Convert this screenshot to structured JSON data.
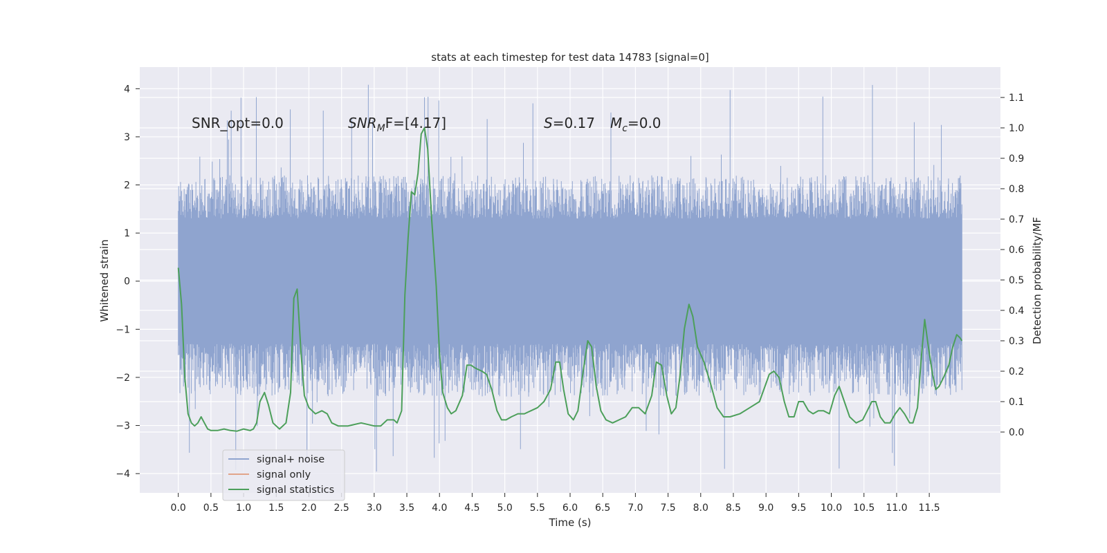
{
  "chart_data": {
    "type": "line",
    "title": "stats at each timestep for test data 14783 [signal=0]",
    "xlabel": "Time (s)",
    "ylabel_left": "Whitened strain",
    "ylabel_right": "Detection probability/MF",
    "xlim": [
      -0.59,
      12.59
    ],
    "ylim_left": [
      -4.4,
      4.45
    ],
    "ylim_right": [
      -0.2,
      1.2
    ],
    "xticks": [
      "0.0",
      "0.5",
      "1.0",
      "1.5",
      "2.0",
      "2.5",
      "3.0",
      "3.5",
      "4.0",
      "4.5",
      "5.0",
      "5.5",
      "6.0",
      "6.5",
      "7.0",
      "7.5",
      "8.0",
      "8.5",
      "9.0",
      "9.5",
      "10.0",
      "10.5",
      "11.0",
      "11.5"
    ],
    "yticks_left": [
      "4",
      "3",
      "2",
      "1",
      "0",
      "−1",
      "−2",
      "−3",
      "−4"
    ],
    "yticks_right": [
      "1.1",
      "1.0",
      "0.9",
      "0.8",
      "0.7",
      "0.6",
      "0.5",
      "0.4",
      "0.3",
      "0.2",
      "0.1",
      "0.0"
    ],
    "annotations": {
      "snr_opt": "SNR_opt=0.0",
      "snr_mf_main": "SNR",
      "snr_mf_sub": "M",
      "snr_mf_rest": "F=[4.17]",
      "s_main": "S",
      "s_rest": "=0.17",
      "mc_main": "M",
      "mc_sub": "c",
      "mc_rest": "=0.0"
    },
    "legend": {
      "position": "lower-left",
      "entries": [
        {
          "label": "signal+ noise",
          "color": "#8fa4cf"
        },
        {
          "label": "signal only",
          "color": "#e1a48a"
        },
        {
          "label": "signal statistics",
          "color": "#4c9f5a"
        }
      ]
    },
    "series": [
      {
        "name": "signal+ noise",
        "axis": "left",
        "color": "#8fa4cf",
        "x_range": [
          0.0,
          12.0
        ],
        "approx_envelope": {
          "typical_max": 2.2,
          "typical_min": -2.4,
          "spikes_max": 4.1,
          "spikes_min": -4.0
        }
      },
      {
        "name": "signal only",
        "axis": "left",
        "color": "#e1a48a",
        "values": []
      },
      {
        "name": "signal statistics",
        "axis": "right",
        "color": "#4c9f5a",
        "points": [
          [
            0.0,
            0.54
          ],
          [
            0.05,
            0.42
          ],
          [
            0.1,
            0.18
          ],
          [
            0.15,
            0.06
          ],
          [
            0.2,
            0.03
          ],
          [
            0.25,
            0.02
          ],
          [
            0.3,
            0.03
          ],
          [
            0.35,
            0.05
          ],
          [
            0.4,
            0.03
          ],
          [
            0.45,
            0.01
          ],
          [
            0.5,
            0.005
          ],
          [
            0.6,
            0.005
          ],
          [
            0.7,
            0.01
          ],
          [
            0.8,
            0.005
          ],
          [
            0.9,
            0.003
          ],
          [
            1.0,
            0.01
          ],
          [
            1.1,
            0.005
          ],
          [
            1.15,
            0.01
          ],
          [
            1.2,
            0.03
          ],
          [
            1.25,
            0.1
          ],
          [
            1.32,
            0.13
          ],
          [
            1.38,
            0.09
          ],
          [
            1.45,
            0.03
          ],
          [
            1.55,
            0.01
          ],
          [
            1.65,
            0.03
          ],
          [
            1.72,
            0.13
          ],
          [
            1.77,
            0.44
          ],
          [
            1.82,
            0.47
          ],
          [
            1.88,
            0.26
          ],
          [
            1.93,
            0.12
          ],
          [
            2.0,
            0.08
          ],
          [
            2.1,
            0.06
          ],
          [
            2.2,
            0.07
          ],
          [
            2.28,
            0.06
          ],
          [
            2.35,
            0.03
          ],
          [
            2.45,
            0.02
          ],
          [
            2.6,
            0.02
          ],
          [
            2.8,
            0.03
          ],
          [
            3.0,
            0.02
          ],
          [
            3.1,
            0.02
          ],
          [
            3.2,
            0.04
          ],
          [
            3.3,
            0.04
          ],
          [
            3.35,
            0.03
          ],
          [
            3.42,
            0.07
          ],
          [
            3.47,
            0.45
          ],
          [
            3.52,
            0.64
          ],
          [
            3.57,
            0.79
          ],
          [
            3.62,
            0.78
          ],
          [
            3.67,
            0.85
          ],
          [
            3.72,
            0.98
          ],
          [
            3.77,
            1.0
          ],
          [
            3.82,
            0.93
          ],
          [
            3.88,
            0.7
          ],
          [
            3.95,
            0.48
          ],
          [
            4.0,
            0.26
          ],
          [
            4.05,
            0.13
          ],
          [
            4.12,
            0.08
          ],
          [
            4.18,
            0.06
          ],
          [
            4.25,
            0.07
          ],
          [
            4.35,
            0.12
          ],
          [
            4.42,
            0.22
          ],
          [
            4.48,
            0.22
          ],
          [
            4.55,
            0.21
          ],
          [
            4.65,
            0.2
          ],
          [
            4.72,
            0.19
          ],
          [
            4.8,
            0.14
          ],
          [
            4.88,
            0.07
          ],
          [
            4.95,
            0.04
          ],
          [
            5.02,
            0.04
          ],
          [
            5.1,
            0.05
          ],
          [
            5.2,
            0.06
          ],
          [
            5.3,
            0.06
          ],
          [
            5.4,
            0.07
          ],
          [
            5.5,
            0.08
          ],
          [
            5.6,
            0.1
          ],
          [
            5.7,
            0.14
          ],
          [
            5.78,
            0.23
          ],
          [
            5.84,
            0.23
          ],
          [
            5.9,
            0.14
          ],
          [
            5.97,
            0.06
          ],
          [
            6.05,
            0.04
          ],
          [
            6.12,
            0.07
          ],
          [
            6.2,
            0.2
          ],
          [
            6.27,
            0.3
          ],
          [
            6.33,
            0.28
          ],
          [
            6.4,
            0.15
          ],
          [
            6.47,
            0.07
          ],
          [
            6.55,
            0.04
          ],
          [
            6.65,
            0.03
          ],
          [
            6.75,
            0.04
          ],
          [
            6.85,
            0.05
          ],
          [
            6.95,
            0.08
          ],
          [
            7.05,
            0.08
          ],
          [
            7.15,
            0.06
          ],
          [
            7.25,
            0.12
          ],
          [
            7.32,
            0.23
          ],
          [
            7.4,
            0.22
          ],
          [
            7.48,
            0.12
          ],
          [
            7.55,
            0.06
          ],
          [
            7.62,
            0.08
          ],
          [
            7.68,
            0.18
          ],
          [
            7.75,
            0.34
          ],
          [
            7.82,
            0.42
          ],
          [
            7.88,
            0.38
          ],
          [
            7.95,
            0.28
          ],
          [
            8.05,
            0.23
          ],
          [
            8.15,
            0.16
          ],
          [
            8.25,
            0.08
          ],
          [
            8.35,
            0.05
          ],
          [
            8.45,
            0.05
          ],
          [
            8.6,
            0.06
          ],
          [
            8.75,
            0.08
          ],
          [
            8.9,
            0.1
          ],
          [
            9.0,
            0.16
          ],
          [
            9.05,
            0.19
          ],
          [
            9.12,
            0.2
          ],
          [
            9.2,
            0.18
          ],
          [
            9.28,
            0.1
          ],
          [
            9.35,
            0.05
          ],
          [
            9.43,
            0.05
          ],
          [
            9.5,
            0.1
          ],
          [
            9.57,
            0.1
          ],
          [
            9.65,
            0.07
          ],
          [
            9.72,
            0.06
          ],
          [
            9.8,
            0.07
          ],
          [
            9.88,
            0.07
          ],
          [
            9.97,
            0.06
          ],
          [
            10.05,
            0.12
          ],
          [
            10.12,
            0.15
          ],
          [
            10.2,
            0.1
          ],
          [
            10.28,
            0.05
          ],
          [
            10.38,
            0.03
          ],
          [
            10.48,
            0.04
          ],
          [
            10.55,
            0.07
          ],
          [
            10.62,
            0.1
          ],
          [
            10.68,
            0.1
          ],
          [
            10.75,
            0.05
          ],
          [
            10.82,
            0.03
          ],
          [
            10.9,
            0.03
          ],
          [
            10.98,
            0.06
          ],
          [
            11.05,
            0.08
          ],
          [
            11.12,
            0.06
          ],
          [
            11.2,
            0.03
          ],
          [
            11.25,
            0.03
          ],
          [
            11.32,
            0.08
          ],
          [
            11.38,
            0.25
          ],
          [
            11.43,
            0.37
          ],
          [
            11.48,
            0.29
          ],
          [
            11.55,
            0.19
          ],
          [
            11.6,
            0.14
          ],
          [
            11.65,
            0.15
          ],
          [
            11.72,
            0.18
          ],
          [
            11.8,
            0.22
          ],
          [
            11.86,
            0.28
          ],
          [
            11.92,
            0.32
          ],
          [
            11.97,
            0.31
          ],
          [
            12.0,
            0.3
          ]
        ]
      }
    ]
  }
}
